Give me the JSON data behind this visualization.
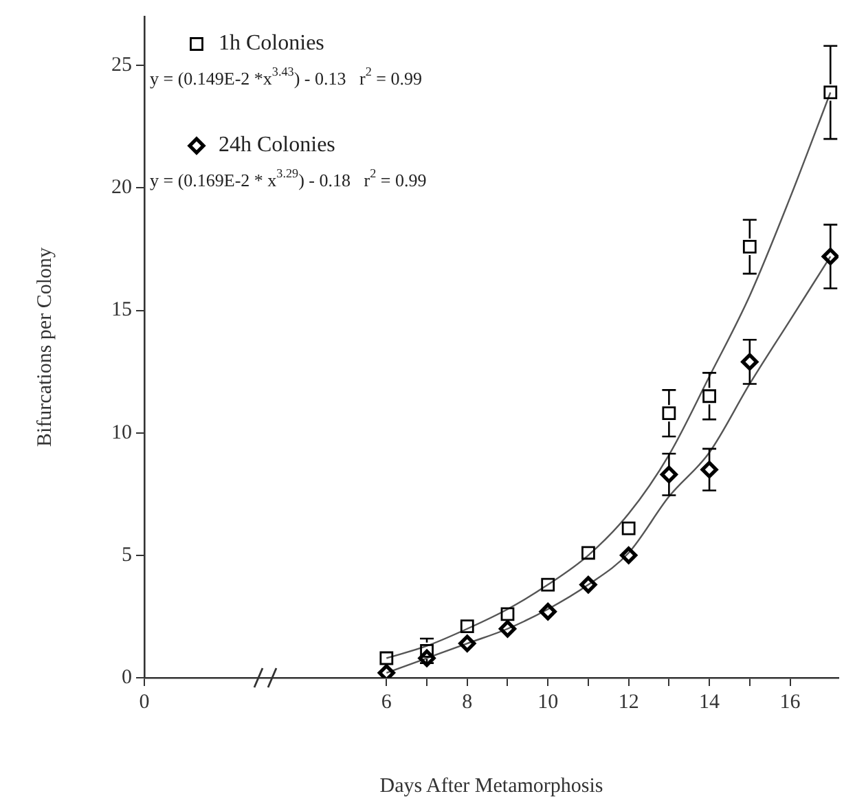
{
  "chart_data": {
    "type": "scatter",
    "xlabel": "Days After Metamorphosis",
    "ylabel": "Bifurcations per Colony",
    "xlim": [
      0,
      17.2
    ],
    "xticks": [
      0,
      6,
      {
        "value": 7,
        "label": null
      },
      8,
      {
        "value": 9,
        "label": null
      },
      10,
      {
        "value": 11,
        "label": null
      },
      12,
      {
        "value": 13,
        "label": null
      },
      14,
      {
        "value": 15,
        "label": null
      },
      16
    ],
    "ylim": [
      0,
      27
    ],
    "yticks": [
      0,
      5,
      10,
      15,
      20,
      25
    ],
    "grid": false,
    "legend": "top left",
    "series": [
      {
        "name": "1h Colonies",
        "marker": "square",
        "color": "#000000",
        "x": [
          6,
          7,
          8,
          9,
          10,
          11,
          12,
          13,
          14,
          15,
          17
        ],
        "values": [
          0.8,
          1.1,
          2.1,
          2.6,
          3.8,
          5.1,
          6.1,
          10.8,
          11.5,
          17.6,
          23.9
        ],
        "errors": [
          null,
          0.5,
          null,
          null,
          null,
          null,
          null,
          0.95,
          0.95,
          1.1,
          1.9
        ]
      },
      {
        "name": "24h Colonies",
        "marker": "diamond",
        "color": "#000000",
        "x": [
          6,
          7,
          8,
          9,
          10,
          11,
          12,
          13,
          14,
          15,
          17
        ],
        "values": [
          0.2,
          0.8,
          1.4,
          2.0,
          2.7,
          3.8,
          5.0,
          8.3,
          8.5,
          12.9,
          17.2
        ],
        "errors": [
          null,
          null,
          null,
          null,
          null,
          null,
          null,
          0.85,
          0.85,
          0.9,
          1.3
        ]
      },
      {
        "type": "line",
        "marker": "none",
        "color": "#555555",
        "x": [
          6,
          7,
          8,
          9,
          10,
          11,
          12,
          13,
          14,
          15,
          16,
          17
        ],
        "values": [
          0.8,
          1.3,
          2.0,
          2.8,
          3.8,
          5.0,
          6.7,
          9.1,
          12.3,
          15.6,
          19.6,
          23.9
        ]
      },
      {
        "type": "line",
        "marker": "none",
        "color": "#555555",
        "x": [
          6,
          7,
          8,
          9,
          10,
          11,
          12,
          13,
          14,
          15,
          16,
          17
        ],
        "values": [
          0.2,
          0.8,
          1.4,
          2.0,
          2.8,
          3.8,
          5.1,
          7.4,
          9.2,
          12.0,
          14.6,
          17.2
        ]
      }
    ],
    "annotations": [
      "y = (0.149E-2 *x$^{3.43}$) - 0.13   r$^{2}$ = 0.99",
      "y = (0.169E-2 * x$^{3.29}$) - 0.18   r$^{2}$ = 0.99"
    ]
  }
}
